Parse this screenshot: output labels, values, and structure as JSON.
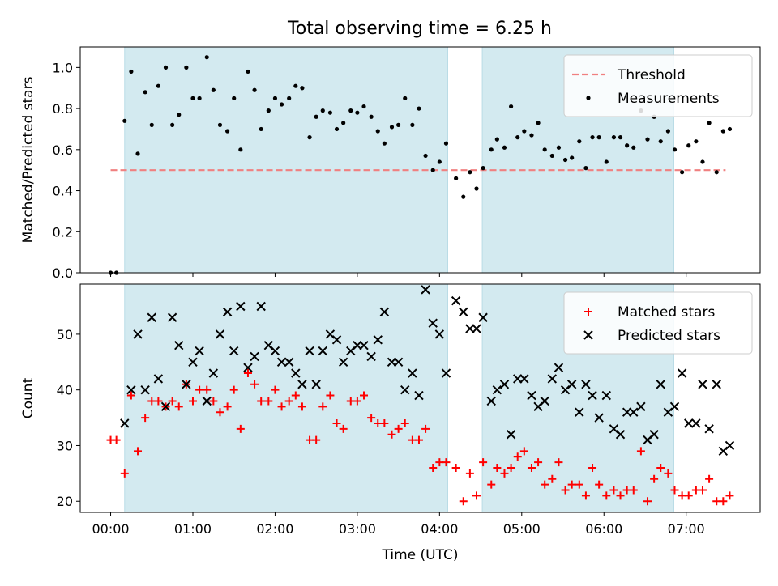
{
  "title": "Total observing time = 6.25 h",
  "chart_data": [
    {
      "type": "scatter",
      "panel": "top",
      "ylabel": "Matched/Predicted stars",
      "xlabel": "",
      "xlim": [
        -0.37,
        7.9
      ],
      "ylim": [
        0.0,
        1.1
      ],
      "yticks": [
        0.0,
        0.2,
        0.4,
        0.6,
        0.8,
        1.0
      ],
      "ytick_labels": [
        "0.0",
        "0.2",
        "0.4",
        "0.6",
        "0.8",
        "1.0"
      ],
      "legend_position": "top-right",
      "shaded_intervals_hours": [
        [
          0.17,
          4.1
        ],
        [
          4.52,
          6.85
        ]
      ],
      "shade_color": "#d3eaf0",
      "threshold": {
        "name": "Threshold",
        "value": 0.5,
        "x_range": [
          0.0,
          7.48
        ],
        "color": "#f08080"
      },
      "series": [
        {
          "name": "Measurements",
          "color": "#000000",
          "x": [
            0.0,
            0.07,
            0.17,
            0.25,
            0.33,
            0.42,
            0.5,
            0.58,
            0.67,
            0.75,
            0.83,
            0.92,
            1.0,
            1.08,
            1.17,
            1.25,
            1.33,
            1.42,
            1.5,
            1.58,
            1.67,
            1.75,
            1.83,
            1.92,
            2.0,
            2.08,
            2.17,
            2.25,
            2.33,
            2.42,
            2.5,
            2.58,
            2.67,
            2.75,
            2.83,
            2.92,
            3.0,
            3.08,
            3.17,
            3.25,
            3.33,
            3.42,
            3.5,
            3.58,
            3.67,
            3.75,
            3.83,
            3.92,
            4.0,
            4.08,
            4.2,
            4.29,
            4.37,
            4.45,
            4.53,
            4.63,
            4.7,
            4.79,
            4.87,
            4.95,
            5.03,
            5.12,
            5.2,
            5.28,
            5.37,
            5.45,
            5.53,
            5.61,
            5.7,
            5.78,
            5.86,
            5.94,
            6.03,
            6.12,
            6.2,
            6.28,
            6.36,
            6.45,
            6.53,
            6.61,
            6.69,
            6.78,
            6.86,
            6.95,
            7.03,
            7.12,
            7.2,
            7.28,
            7.37,
            7.45,
            7.53
          ],
          "y": [
            0.0,
            0.0,
            0.74,
            0.98,
            0.58,
            0.88,
            0.72,
            0.91,
            1.0,
            0.72,
            0.77,
            1.0,
            0.85,
            0.85,
            1.05,
            0.89,
            0.72,
            0.69,
            0.85,
            0.6,
            0.98,
            0.89,
            0.7,
            0.79,
            0.85,
            0.82,
            0.85,
            0.91,
            0.9,
            0.66,
            0.76,
            0.79,
            0.78,
            0.7,
            0.73,
            0.79,
            0.78,
            0.81,
            0.76,
            0.69,
            0.63,
            0.71,
            0.72,
            0.85,
            0.72,
            0.8,
            0.57,
            0.5,
            0.54,
            0.63,
            0.46,
            0.37,
            0.49,
            0.41,
            0.51,
            0.6,
            0.65,
            0.61,
            0.81,
            0.66,
            0.69,
            0.67,
            0.73,
            0.6,
            0.57,
            0.61,
            0.55,
            0.56,
            0.64,
            0.51,
            0.66,
            0.66,
            0.54,
            0.66,
            0.66,
            0.62,
            0.61,
            0.79,
            0.65,
            0.76,
            0.64,
            0.69,
            0.6,
            0.49,
            0.62,
            0.64,
            0.54,
            0.73,
            0.49,
            0.69,
            0.7
          ]
        }
      ]
    },
    {
      "type": "scatter",
      "panel": "bottom",
      "ylabel": "Count",
      "xlabel": "Time (UTC)",
      "xlim": [
        -0.37,
        7.9
      ],
      "ylim": [
        18,
        59
      ],
      "yticks": [
        20,
        30,
        40,
        50
      ],
      "ytick_labels": [
        "20",
        "30",
        "40",
        "50"
      ],
      "xticks_hours": [
        0,
        1,
        2,
        3,
        4,
        5,
        6,
        7
      ],
      "xtick_labels": [
        "00:00",
        "01:00",
        "02:00",
        "03:00",
        "04:00",
        "05:00",
        "06:00",
        "07:00"
      ],
      "legend_position": "top-right",
      "shaded_intervals_hours": [
        [
          0.17,
          4.1
        ],
        [
          4.52,
          6.85
        ]
      ],
      "shade_color": "#d3eaf0",
      "series": [
        {
          "name": "Matched stars",
          "marker": "plus",
          "color": "#ff0000",
          "x": [
            0.0,
            0.07,
            0.17,
            0.25,
            0.33,
            0.42,
            0.5,
            0.58,
            0.67,
            0.75,
            0.83,
            0.92,
            1.0,
            1.08,
            1.17,
            1.25,
            1.33,
            1.42,
            1.5,
            1.58,
            1.67,
            1.75,
            1.83,
            1.92,
            2.0,
            2.08,
            2.17,
            2.25,
            2.33,
            2.42,
            2.5,
            2.58,
            2.67,
            2.75,
            2.83,
            2.92,
            3.0,
            3.08,
            3.17,
            3.25,
            3.33,
            3.42,
            3.5,
            3.58,
            3.67,
            3.75,
            3.83,
            3.92,
            4.0,
            4.08,
            4.2,
            4.29,
            4.37,
            4.45,
            4.53,
            4.63,
            4.7,
            4.79,
            4.87,
            4.95,
            5.03,
            5.12,
            5.2,
            5.28,
            5.37,
            5.45,
            5.53,
            5.61,
            5.7,
            5.78,
            5.86,
            5.94,
            6.03,
            6.12,
            6.2,
            6.28,
            6.36,
            6.45,
            6.53,
            6.61,
            6.69,
            6.78,
            6.86,
            6.95,
            7.03,
            7.12,
            7.2,
            7.28,
            7.37,
            7.45,
            7.53
          ],
          "y": [
            31,
            31,
            25,
            39,
            29,
            35,
            38,
            38,
            37,
            38,
            37,
            41,
            38,
            40,
            40,
            38,
            36,
            37,
            40,
            33,
            43,
            41,
            38,
            38,
            40,
            37,
            38,
            39,
            37,
            31,
            31,
            37,
            39,
            34,
            33,
            38,
            38,
            39,
            35,
            34,
            34,
            32,
            33,
            34,
            31,
            31,
            33,
            26,
            27,
            27,
            26,
            20,
            25,
            21,
            27,
            23,
            26,
            25,
            26,
            28,
            29,
            26,
            27,
            23,
            24,
            27,
            22,
            23,
            23,
            21,
            26,
            23,
            21,
            22,
            21,
            22,
            22,
            29,
            20,
            24,
            26,
            25,
            22,
            21,
            21,
            22,
            22,
            24,
            20,
            20,
            21
          ]
        },
        {
          "name": "Predicted stars",
          "marker": "x",
          "color": "#000000",
          "x": [
            0.17,
            0.25,
            0.33,
            0.42,
            0.5,
            0.58,
            0.67,
            0.75,
            0.83,
            0.92,
            1.0,
            1.08,
            1.17,
            1.25,
            1.33,
            1.42,
            1.5,
            1.58,
            1.67,
            1.75,
            1.83,
            1.92,
            2.0,
            2.08,
            2.17,
            2.25,
            2.33,
            2.42,
            2.5,
            2.58,
            2.67,
            2.75,
            2.83,
            2.92,
            3.0,
            3.08,
            3.17,
            3.25,
            3.33,
            3.42,
            3.5,
            3.58,
            3.67,
            3.75,
            3.83,
            3.92,
            4.0,
            4.08,
            4.2,
            4.29,
            4.37,
            4.45,
            4.53,
            4.63,
            4.7,
            4.79,
            4.87,
            4.95,
            5.03,
            5.12,
            5.2,
            5.28,
            5.37,
            5.45,
            5.53,
            5.61,
            5.7,
            5.78,
            5.86,
            5.94,
            6.03,
            6.12,
            6.2,
            6.28,
            6.36,
            6.45,
            6.53,
            6.61,
            6.69,
            6.78,
            6.86,
            6.95,
            7.03,
            7.12,
            7.2,
            7.28,
            7.37,
            7.45,
            7.53
          ],
          "y": [
            34,
            40,
            50,
            40,
            53,
            42,
            37,
            53,
            48,
            41,
            45,
            47,
            38,
            43,
            50,
            54,
            47,
            55,
            44,
            46,
            55,
            48,
            47,
            45,
            45,
            43,
            41,
            47,
            41,
            47,
            50,
            49,
            45,
            47,
            48,
            48,
            46,
            49,
            54,
            45,
            45,
            40,
            43,
            39,
            58,
            52,
            50,
            43,
            56,
            54,
            51,
            51,
            53,
            38,
            40,
            41,
            32,
            42,
            42,
            39,
            37,
            38,
            42,
            44,
            40,
            41,
            36,
            41,
            39,
            35,
            39,
            33,
            32,
            36,
            36,
            37,
            31,
            32,
            41,
            36,
            37,
            43,
            34,
            34,
            41,
            33,
            41,
            29,
            30
          ]
        }
      ]
    }
  ]
}
